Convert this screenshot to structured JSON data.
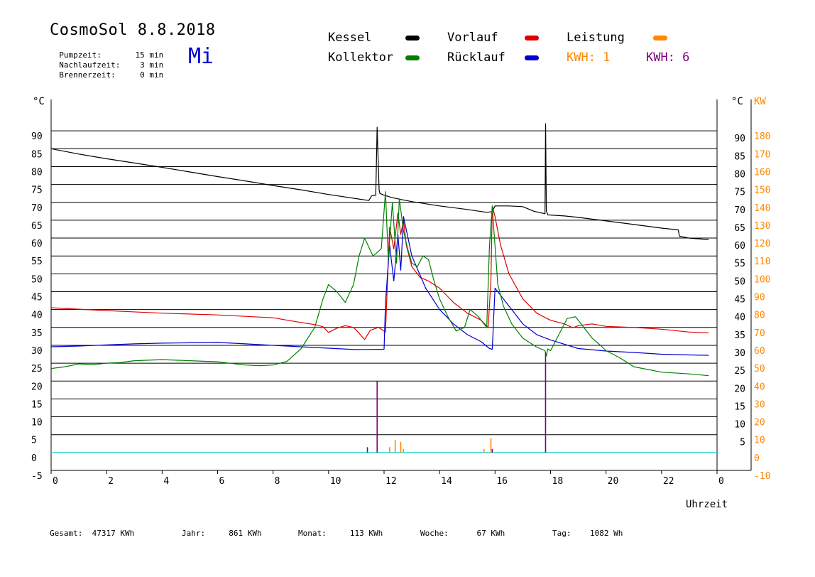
{
  "header": {
    "title": "CosmoSol 8.8.2018",
    "day": "Mi",
    "info": [
      {
        "label": "Pumpzeit:",
        "value": "15 min"
      },
      {
        "label": "Nachlaufzeit:",
        "value": "3 min"
      },
      {
        "label": "Brennerzeit:",
        "value": "0 min"
      }
    ]
  },
  "legend": {
    "kessel": "Kessel",
    "kollektor": "Kollektor",
    "vorlauf": "Vorlauf",
    "ruecklauf": "Rücklauf",
    "leistung": "Leistung",
    "kwh1": "KWH: 1",
    "kwh2": "KWH: 6"
  },
  "colors": {
    "kessel": "#000000",
    "kollektor": "#008000",
    "vorlauf": "#e00000",
    "ruecklauf": "#0000d0",
    "leistung": "#ff8800",
    "kwh2": "#800080",
    "baseline": "#40e0e0"
  },
  "footer": [
    {
      "label": "Gesamt:",
      "value": "47317 KWh"
    },
    {
      "label": "Jahr:",
      "value": "861 KWh"
    },
    {
      "label": "Monat:",
      "value": "113 KWh"
    },
    {
      "label": "Woche:",
      "value": "67 KWh"
    },
    {
      "label": "Tag:",
      "value": "1082 Wh"
    }
  ],
  "chart_data": {
    "type": "line",
    "xlabel": "Uhrzeit",
    "ylabel_left": "°C",
    "ylabel_right": "°C",
    "ylabel_right2": "KW",
    "xlim": [
      0,
      24
    ],
    "ylim": [
      -5,
      95
    ],
    "y2lim": [
      -10,
      190
    ],
    "x_ticks": [
      "0",
      "2",
      "4",
      "6",
      "8",
      "10",
      "12",
      "14",
      "16",
      "18",
      "20",
      "22",
      "0"
    ],
    "y_ticks": [
      -5,
      0,
      5,
      10,
      15,
      20,
      25,
      30,
      35,
      40,
      45,
      50,
      55,
      60,
      65,
      70,
      75,
      80,
      85,
      90
    ],
    "y_ticks_right": [
      5,
      10,
      15,
      20,
      25,
      30,
      35,
      40,
      45,
      50,
      55,
      60,
      65,
      70,
      75,
      80,
      85,
      90
    ],
    "y2_ticks": [
      -10,
      0,
      10,
      20,
      30,
      40,
      50,
      60,
      70,
      80,
      90,
      100,
      110,
      120,
      130,
      140,
      150,
      160,
      170,
      180
    ],
    "grid": true,
    "series": [
      {
        "name": "Kessel",
        "color_key": "kessel",
        "x": [
          0,
          1,
          2,
          3,
          4,
          5,
          6,
          7,
          8,
          9,
          10,
          11.2,
          11.45,
          11.55,
          11.7,
          11.75,
          11.82,
          11.85,
          12.0,
          12.3,
          12.6,
          13,
          14,
          15,
          15.7,
          15.9,
          16.0,
          16.5,
          17,
          17.4,
          17.8,
          17.82,
          17.85,
          17.88,
          17.9,
          18.5,
          19,
          20,
          21,
          22,
          22.6,
          22.65,
          23,
          23.7
        ],
        "y": [
          85,
          83.5,
          82.2,
          81,
          79.8,
          78.5,
          77.2,
          76,
          74.7,
          73.5,
          72.2,
          70.8,
          70.5,
          71.8,
          72,
          91,
          73.5,
          72.5,
          72,
          71.3,
          70.8,
          70.2,
          69,
          68,
          67.2,
          67.4,
          69,
          69,
          68.8,
          67.5,
          66.8,
          92,
          67.5,
          67,
          66.5,
          66.2,
          65.8,
          64.8,
          63.8,
          62.8,
          62.3,
          60.5,
          60,
          59.6
        ]
      },
      {
        "name": "Vorlauf",
        "color_key": "vorlauf",
        "x": [
          0,
          2,
          4,
          6,
          8,
          9,
          9.5,
          9.8,
          10,
          10.3,
          10.6,
          10.9,
          11.1,
          11.3,
          11.5,
          11.8,
          12.05,
          12.2,
          12.35,
          12.5,
          12.6,
          12.7,
          12.8,
          13,
          13.3,
          13.6,
          14,
          14.5,
          15,
          15.5,
          15.75,
          15.85,
          15.9,
          16.0,
          16.2,
          16.5,
          17,
          17.5,
          18,
          18.5,
          18.8,
          19,
          19.5,
          20,
          21,
          22,
          23,
          23.7
        ],
        "y": [
          40.5,
          39.7,
          39,
          38.5,
          37.7,
          36.4,
          35.8,
          35.2,
          33.6,
          34.8,
          35.5,
          35,
          33.4,
          31.6,
          34.2,
          35,
          33.7,
          63,
          57,
          67,
          61,
          65,
          58,
          52,
          49,
          48,
          46,
          42,
          39,
          37,
          35,
          48,
          69,
          66,
          58,
          50,
          43,
          39,
          37,
          36,
          34.9,
          35.5,
          36,
          35.3,
          35,
          34.5,
          33.7,
          33.5
        ]
      },
      {
        "name": "Rücklauf",
        "color_key": "ruecklauf",
        "x": [
          0,
          1,
          2,
          3,
          4,
          5,
          6,
          7,
          8,
          9,
          10,
          11,
          12.0,
          12.05,
          12.2,
          12.35,
          12.5,
          12.6,
          12.7,
          13,
          13.5,
          14,
          14.5,
          15,
          15.5,
          15.8,
          15.9,
          16.0,
          16.2,
          16.5,
          17,
          17.5,
          18,
          18.5,
          19,
          20,
          21,
          22,
          23,
          23.7
        ],
        "y": [
          29.6,
          29.8,
          30.1,
          30.4,
          30.6,
          30.7,
          30.8,
          30.4,
          30,
          29.6,
          29.2,
          28.8,
          28.9,
          42,
          58,
          48,
          61,
          51,
          66,
          55,
          46,
          40,
          36,
          33,
          31,
          29.1,
          28.9,
          46,
          44,
          41,
          36,
          33,
          31.5,
          30.3,
          29.1,
          28.4,
          28,
          27.5,
          27.3,
          27.2
        ]
      },
      {
        "name": "Kollektor",
        "color_key": "kollektor",
        "x": [
          0,
          0.5,
          1,
          1.5,
          2,
          2.5,
          3,
          4,
          5,
          6,
          7,
          7.5,
          8,
          8.5,
          9,
          9.5,
          9.8,
          10,
          10.3,
          10.6,
          10.9,
          11.1,
          11.3,
          11.6,
          11.9,
          12.05,
          12.15,
          12.3,
          12.45,
          12.55,
          12.7,
          12.85,
          13,
          13.2,
          13.4,
          13.6,
          13.8,
          14,
          14.3,
          14.6,
          14.9,
          15.1,
          15.4,
          15.7,
          15.8,
          15.9,
          15.95,
          16.1,
          16.3,
          16.6,
          17,
          17.5,
          17.8,
          17.85,
          17.9,
          18,
          18.3,
          18.6,
          18.9,
          19.2,
          19.5,
          19.8,
          20,
          20.5,
          21,
          22,
          23,
          23.7
        ],
        "y": [
          23.5,
          24,
          24.8,
          24.6,
          25,
          25.2,
          25.7,
          26,
          25.7,
          25.4,
          24.5,
          24.3,
          24.5,
          25.5,
          29,
          35,
          43,
          47,
          45,
          42,
          47,
          55,
          60,
          55,
          57,
          73,
          54,
          70,
          53,
          71,
          62,
          57,
          53,
          52,
          55,
          54,
          48,
          43,
          38,
          34,
          35,
          40,
          38,
          35,
          58,
          69,
          63,
          47,
          41,
          36,
          32,
          29.5,
          28.5,
          27,
          29,
          28.5,
          33,
          37.5,
          38,
          35,
          32,
          30,
          28.5,
          26.5,
          24,
          22.5,
          22,
          21.5
        ]
      },
      {
        "name": "Leistung",
        "color_key": "leistung",
        "x": [
          12.2,
          12.4,
          12.6,
          12.7,
          15.6,
          15.85,
          17.85
        ],
        "y": [
          1.5,
          3.5,
          3,
          1,
          1,
          4,
          0
        ]
      },
      {
        "name": "KWH: 6",
        "color_key": "kwh2",
        "x": [
          11.4,
          11.75,
          15.9,
          17.82
        ],
        "y": [
          1.5,
          20,
          1,
          28
        ]
      }
    ]
  }
}
